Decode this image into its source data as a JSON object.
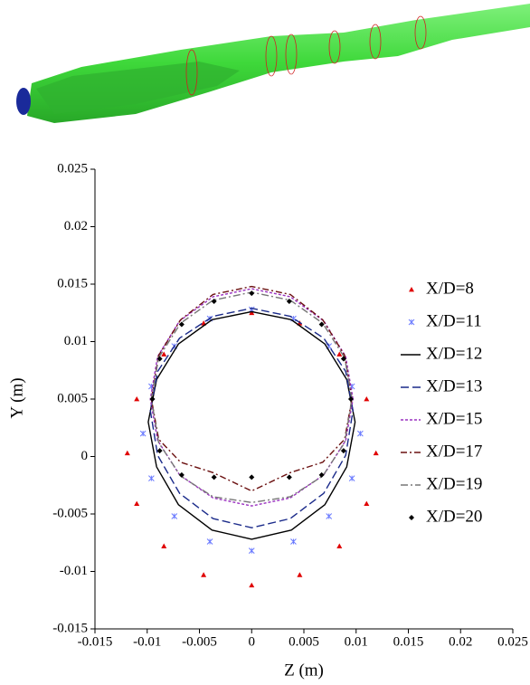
{
  "chart_data": {
    "type": "contour",
    "xlabel": "Z (m)",
    "ylabel": "Y (m)",
    "xlim": [
      -0.015,
      0.025
    ],
    "ylim": [
      -0.015,
      0.025
    ],
    "xticks": [
      -0.015,
      -0.01,
      -0.005,
      0,
      0.005,
      0.01,
      0.015,
      0.02,
      0.025
    ],
    "yticks": [
      -0.015,
      -0.01,
      -0.005,
      0,
      0.005,
      0.01,
      0.015,
      0.02,
      0.025
    ],
    "legend": "right",
    "series": [
      {
        "name": "X/D=8",
        "color": "#e00000",
        "marker": "triangle",
        "x": [
          0.0119,
          0.011,
          0.0084,
          0.0046,
          0,
          -0.0046,
          -0.0084,
          -0.011,
          -0.0119,
          -0.011,
          -0.0084,
          -0.0046,
          0,
          0.0046,
          0.0084,
          0.011
        ],
        "values": [
          0.0003,
          0.005,
          0.0089,
          0.0116,
          0.0125,
          0.0116,
          0.0089,
          0.005,
          0.0003,
          -0.0041,
          -0.0078,
          -0.0103,
          -0.0112,
          -0.0103,
          -0.0078,
          -0.0041
        ]
      },
      {
        "name": "X/D=11",
        "color": "#6b7bff",
        "marker": "star",
        "x": [
          0.0104,
          0.0096,
          0.0074,
          0.004,
          0,
          -0.004,
          -0.0074,
          -0.0096,
          -0.0104,
          -0.0096,
          -0.0074,
          -0.004,
          0,
          0.004,
          0.0074,
          0.0096
        ],
        "values": [
          0.002,
          0.0061,
          0.0096,
          0.012,
          0.0128,
          0.012,
          0.0096,
          0.0061,
          0.002,
          -0.0019,
          -0.0052,
          -0.0074,
          -0.0082,
          -0.0074,
          -0.0052,
          -0.0019
        ]
      },
      {
        "name": "X/D=12",
        "color": "#000000",
        "dash": "none",
        "x": [
          0.0099,
          0.0091,
          0.007,
          0.0038,
          0,
          -0.0038,
          -0.007,
          -0.0091,
          -0.0099,
          -0.0091,
          -0.007,
          -0.0038,
          0,
          0.0038,
          0.007,
          0.0091
        ],
        "values": [
          0.003,
          0.0067,
          0.0098,
          0.0119,
          0.0126,
          0.0119,
          0.0098,
          0.0067,
          0.003,
          -0.0009,
          -0.0042,
          -0.0064,
          -0.0072,
          -0.0064,
          -0.0042,
          -0.0009
        ]
      },
      {
        "name": "X/D=13",
        "color": "#1a2a8a",
        "dash": "9 4",
        "x": [
          0.0097,
          0.009,
          0.0069,
          0.0037,
          0,
          -0.0037,
          -0.0069,
          -0.009,
          -0.0097,
          -0.009,
          -0.0069,
          -0.0037,
          0,
          0.0037,
          0.0069,
          0.009
        ],
        "values": [
          0.004,
          0.0074,
          0.0103,
          0.0122,
          0.0129,
          0.0122,
          0.0103,
          0.0074,
          0.004,
          0.0001,
          -0.0032,
          -0.0054,
          -0.0062,
          -0.0054,
          -0.0032,
          0.0001
        ]
      },
      {
        "name": "X/D=15",
        "color": "#9a30c0",
        "dash": "3 2",
        "x": [
          0.0097,
          0.009,
          0.0069,
          0.0037,
          0,
          -0.0037,
          -0.0069,
          -0.009,
          -0.0097,
          -0.009,
          -0.0069,
          -0.0037,
          0,
          0.0037,
          0.0069,
          0.009
        ],
        "values": [
          0.005,
          0.0087,
          0.0118,
          0.0139,
          0.0146,
          0.0139,
          0.0118,
          0.0087,
          0.005,
          0.0014,
          -0.0016,
          -0.0036,
          -0.0043,
          -0.0036,
          -0.0016,
          0.0014
        ]
      },
      {
        "name": "X/D=17",
        "color": "#6b1010",
        "dash": "7 3 2 3",
        "x": [
          0.0096,
          0.0089,
          0.0068,
          0.0037,
          0,
          -0.0037,
          -0.0068,
          -0.0089,
          -0.0096,
          -0.0089,
          -0.0068,
          -0.0037,
          0,
          0.0037,
          0.0068,
          0.0089
        ],
        "values": [
          0.005,
          0.0088,
          0.0119,
          0.0141,
          0.0148,
          0.0141,
          0.0119,
          0.0088,
          0.005,
          0.0015,
          -0.0005,
          -0.0014,
          -0.003,
          -0.0014,
          -0.0005,
          0.0015
        ]
      },
      {
        "name": "X/D=19",
        "color": "#777777",
        "dash": "8 3 2 3",
        "x": [
          0.0096,
          0.0089,
          0.0068,
          0.0037,
          0,
          -0.0037,
          -0.0068,
          -0.0089,
          -0.0096,
          -0.0089,
          -0.0068,
          -0.0037,
          0,
          0.0037,
          0.0068,
          0.0089
        ],
        "values": [
          0.005,
          0.0086,
          0.0116,
          0.0136,
          0.0143,
          0.0136,
          0.0116,
          0.0086,
          0.005,
          0.0012,
          -0.0017,
          -0.0035,
          -0.004,
          -0.0035,
          -0.0017,
          0.0012
        ]
      },
      {
        "name": "X/D=20",
        "color": "#000000",
        "marker": "diamond",
        "x": [
          0.0095,
          0.0088,
          0.0067,
          0.0036,
          0,
          -0.0036,
          -0.0067,
          -0.0088,
          -0.0095,
          -0.0088,
          -0.0067,
          -0.0036,
          0,
          0.0036,
          0.0067,
          0.0088
        ],
        "values": [
          0.005,
          0.0085,
          0.0115,
          0.0135,
          0.0142,
          0.0135,
          0.0115,
          0.0085,
          0.005,
          0.0005,
          -0.0016,
          -0.0018,
          -0.0018,
          -0.0018,
          -0.0016,
          0.0005
        ]
      }
    ]
  }
}
